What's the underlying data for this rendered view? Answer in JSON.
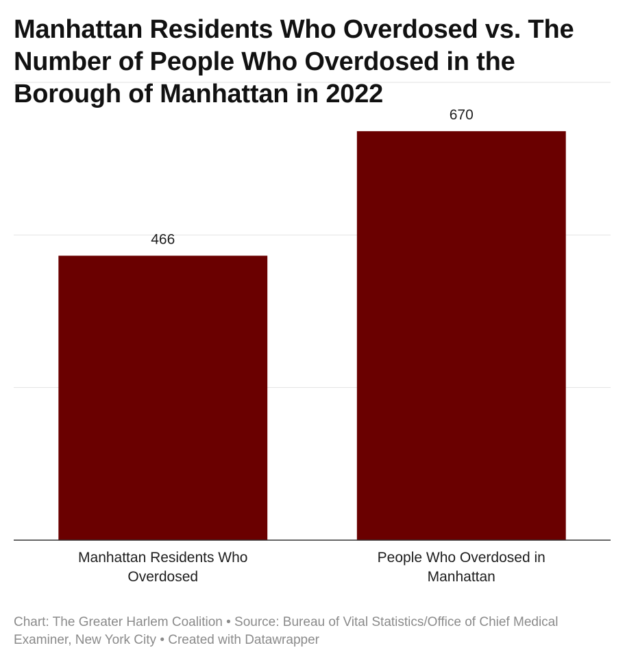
{
  "chart_data": {
    "type": "bar",
    "title": "Manhattan Residents Who Overdosed vs. The Number of People Who Overdosed in the Borough of Manhattan in 2022",
    "categories": [
      [
        "Manhattan Residents Who",
        "Overdosed"
      ],
      [
        "People Who Overdosed in",
        "Manhattan"
      ]
    ],
    "values": [
      466,
      670
    ],
    "value_labels": [
      "466",
      "670"
    ],
    "ylim": [
      0,
      750
    ],
    "grid": true,
    "gridline_values": [
      250,
      500,
      750
    ],
    "bar_color": "#6a0000"
  },
  "footer": {
    "credit": "Chart: The Greater Harlem Coalition",
    "separator": "•",
    "source": "Source: Bureau of Vital Statistics/Office of Chief Medical Examiner, New York City",
    "tool": "Created with Datawrapper"
  }
}
